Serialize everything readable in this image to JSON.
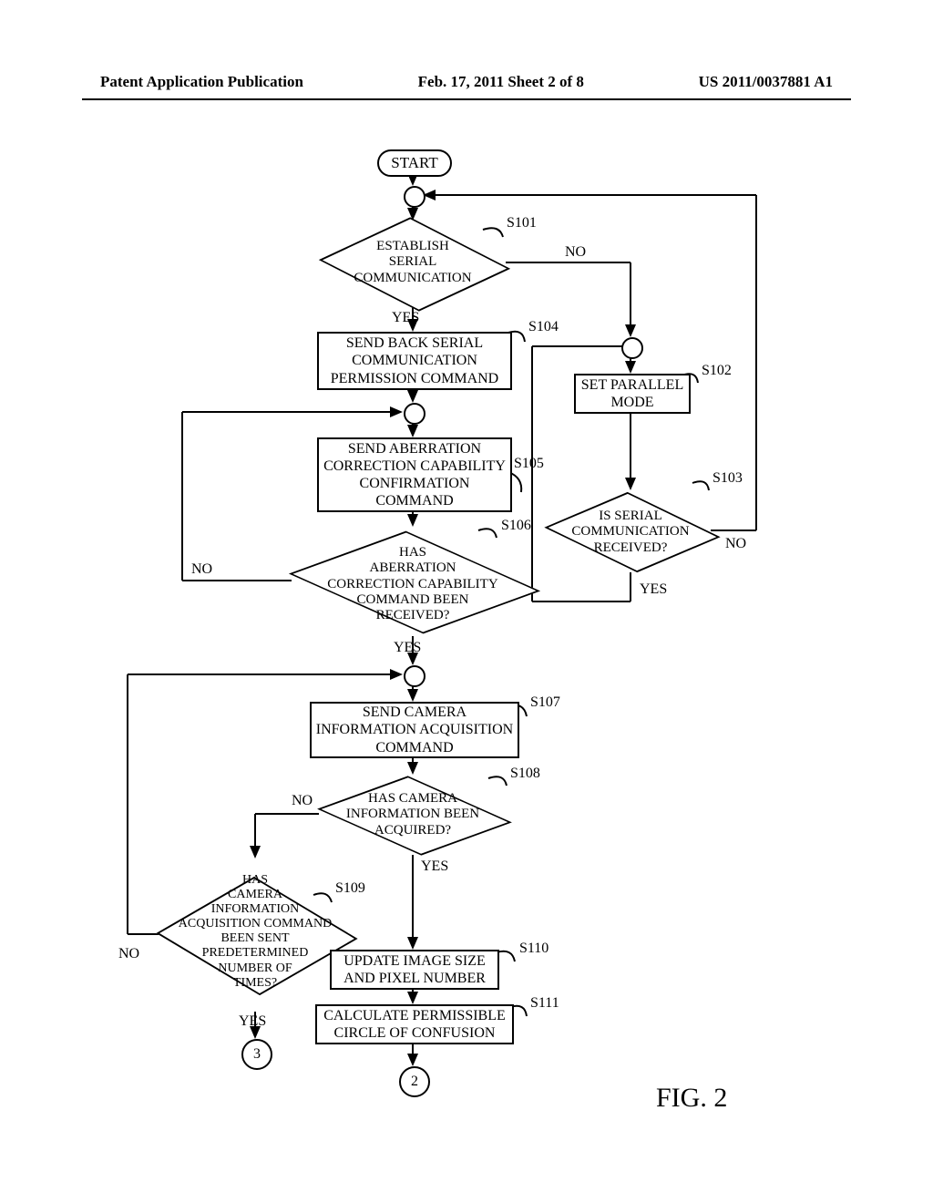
{
  "header": {
    "left": "Patent Application Publication",
    "center": "Feb. 17, 2011  Sheet 2 of 8",
    "right": "US 2011/0037881 A1"
  },
  "figure_label": "FIG. 2",
  "shapes": {
    "start": "START",
    "s101": {
      "text": "ESTABLISH\nSERIAL\nCOMMUNICATION",
      "label": "S101"
    },
    "s104": {
      "text": "SEND BACK SERIAL\nCOMMUNICATION\nPERMISSION COMMAND",
      "label": "S104"
    },
    "s105": {
      "text": "SEND ABERRATION\nCORRECTION CAPABILITY\nCONFIRMATION\nCOMMAND",
      "label": "S105"
    },
    "s106": {
      "text": "HAS\nABERRATION\nCORRECTION CAPABILITY\nCOMMAND BEEN\nRECEIVED?",
      "label": "S106"
    },
    "s107": {
      "text": "SEND CAMERA\nINFORMATION ACQUISITION\nCOMMAND",
      "label": "S107"
    },
    "s108": {
      "text": "HAS CAMERA\nINFORMATION BEEN\nACQUIRED?",
      "label": "S108"
    },
    "s109": {
      "text": "HAS\nCAMERA\nINFORMATION\nACQUISITION COMMAND\nBEEN SENT\nPREDETERMINED\nNUMBER OF\nTIMES?",
      "label": "S109"
    },
    "s110": {
      "text": "UPDATE IMAGE SIZE\nAND PIXEL NUMBER",
      "label": "S110"
    },
    "s111": {
      "text": "CALCULATE PERMISSIBLE\nCIRCLE OF CONFUSION",
      "label": "S111"
    },
    "s102": {
      "text": "SET PARALLEL\nMODE",
      "label": "S102"
    },
    "s103": {
      "text": "IS SERIAL\nCOMMUNICATION\nRECEIVED?",
      "label": "S103"
    },
    "page2": "2",
    "page3": "3"
  },
  "branches": {
    "yes": "YES",
    "no": "NO"
  },
  "style": {
    "line_width": 2,
    "color": "#000000",
    "background": "#ffffff",
    "font_main": 16,
    "font_header": 17,
    "font_fig": 30
  }
}
